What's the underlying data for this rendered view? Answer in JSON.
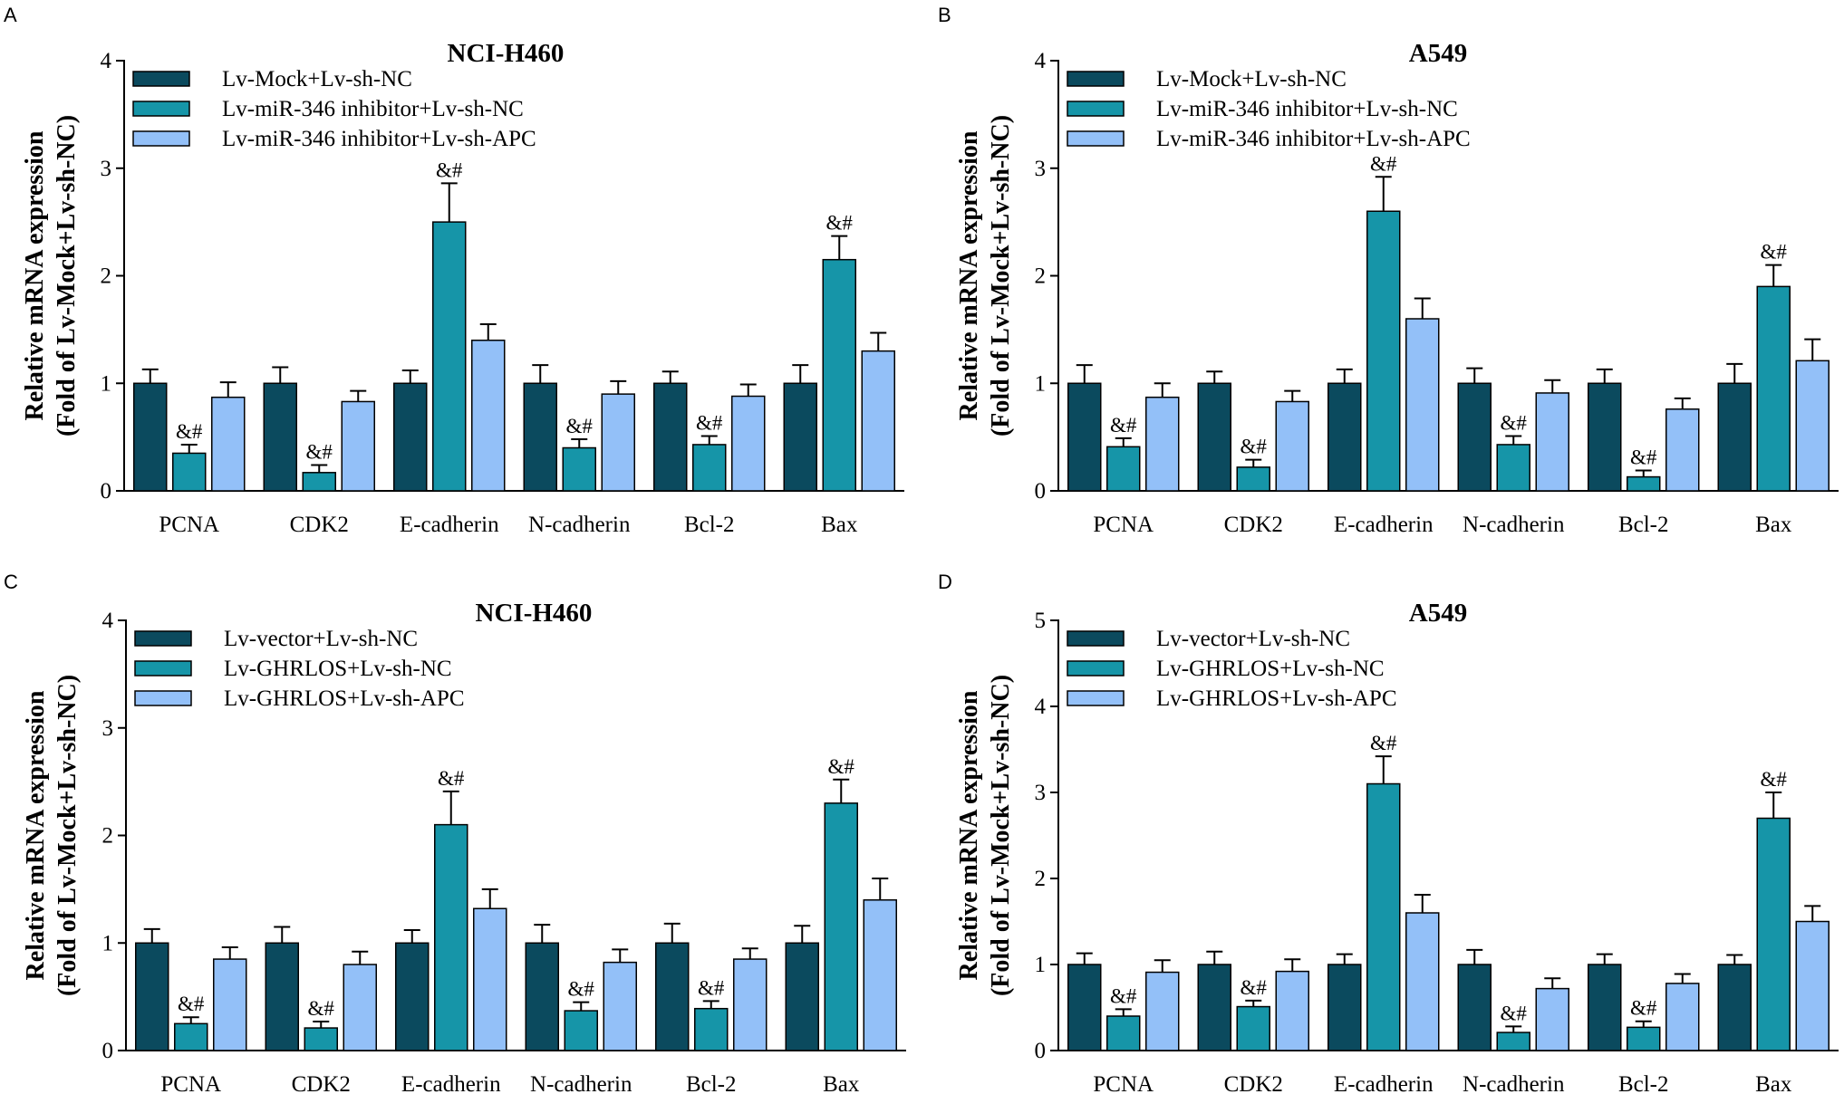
{
  "colors": {
    "series1": "#0b4a5e",
    "series2": "#1695a8",
    "series3": "#93c0f8"
  },
  "chart_data": [
    {
      "panel": "A",
      "type": "bar",
      "title": "NCI-H460",
      "ylabel_line1": "Relative mRNA expression",
      "ylabel_line2": "(Fold of Lv-Mock+Lv-sh-NC)",
      "ylim": [
        0,
        4
      ],
      "yticks": [
        "0",
        "1",
        "2",
        "3",
        "4"
      ],
      "categories": [
        "PCNA",
        "CDK2",
        "E-cadherin",
        "N-cadherin",
        "Bcl-2",
        "Bax"
      ],
      "series": [
        {
          "name": "Lv-Mock+Lv-sh-NC",
          "values": [
            1.0,
            1.0,
            1.0,
            1.0,
            1.0,
            1.0
          ],
          "errors": [
            0.13,
            0.15,
            0.12,
            0.17,
            0.11,
            0.17
          ]
        },
        {
          "name": "Lv-miR-346 inhibitor+Lv-sh-NC",
          "values": [
            0.35,
            0.17,
            2.5,
            0.4,
            0.43,
            2.15
          ],
          "errors": [
            0.08,
            0.07,
            0.36,
            0.08,
            0.08,
            0.22
          ]
        },
        {
          "name": "Lv-miR-346 inhibitor+Lv-sh-APC",
          "values": [
            0.87,
            0.83,
            1.4,
            0.9,
            0.88,
            1.3
          ],
          "errors": [
            0.14,
            0.1,
            0.15,
            0.12,
            0.11,
            0.17
          ]
        }
      ],
      "annotations": [
        {
          "text": "&#",
          "series": 1,
          "category": 0
        },
        {
          "text": "&#",
          "series": 1,
          "category": 1
        },
        {
          "text": "&#",
          "series": 1,
          "category": 2
        },
        {
          "text": "&#",
          "series": 1,
          "category": 3
        },
        {
          "text": "&#",
          "series": 1,
          "category": 4
        },
        {
          "text": "&#",
          "series": 1,
          "category": 5
        }
      ]
    },
    {
      "panel": "B",
      "type": "bar",
      "title": "A549",
      "ylabel_line1": "Relative mRNA expression",
      "ylabel_line2": "(Fold of Lv-Mock+Lv-sh-NC)",
      "ylim": [
        0,
        4
      ],
      "yticks": [
        "0",
        "1",
        "2",
        "3",
        "4"
      ],
      "categories": [
        "PCNA",
        "CDK2",
        "E-cadherin",
        "N-cadherin",
        "Bcl-2",
        "Bax"
      ],
      "series": [
        {
          "name": "Lv-Mock+Lv-sh-NC",
          "values": [
            1.0,
            1.0,
            1.0,
            1.0,
            1.0,
            1.0
          ],
          "errors": [
            0.17,
            0.11,
            0.13,
            0.14,
            0.13,
            0.18
          ]
        },
        {
          "name": "Lv-miR-346 inhibitor+Lv-sh-NC",
          "values": [
            0.41,
            0.22,
            2.6,
            0.43,
            0.13,
            1.9
          ],
          "errors": [
            0.08,
            0.07,
            0.32,
            0.08,
            0.06,
            0.2
          ]
        },
        {
          "name": "Lv-miR-346 inhibitor+Lv-sh-APC",
          "values": [
            0.87,
            0.83,
            1.6,
            0.91,
            0.76,
            1.21
          ],
          "errors": [
            0.13,
            0.1,
            0.19,
            0.12,
            0.1,
            0.2
          ]
        }
      ],
      "annotations": [
        {
          "text": "&#",
          "series": 1,
          "category": 0
        },
        {
          "text": "&#",
          "series": 1,
          "category": 1
        },
        {
          "text": "&#",
          "series": 1,
          "category": 2
        },
        {
          "text": "&#",
          "series": 1,
          "category": 3
        },
        {
          "text": "&#",
          "series": 1,
          "category": 4
        },
        {
          "text": "&#",
          "series": 1,
          "category": 5
        }
      ]
    },
    {
      "panel": "C",
      "type": "bar",
      "title": "NCI-H460",
      "ylabel_line1": "Relative mRNA expression",
      "ylabel_line2": "(Fold of Lv-Mock+Lv-sh-NC)",
      "ylim": [
        0,
        4
      ],
      "yticks": [
        "0",
        "1",
        "2",
        "3",
        "4"
      ],
      "categories": [
        "PCNA",
        "CDK2",
        "E-cadherin",
        "N-cadherin",
        "Bcl-2",
        "Bax"
      ],
      "series": [
        {
          "name": "Lv-vector+Lv-sh-NC",
          "values": [
            1.0,
            1.0,
            1.0,
            1.0,
            1.0,
            1.0
          ],
          "errors": [
            0.13,
            0.15,
            0.12,
            0.17,
            0.18,
            0.16
          ]
        },
        {
          "name": "Lv-GHRLOS+Lv-sh-NC",
          "values": [
            0.25,
            0.21,
            2.1,
            0.37,
            0.39,
            2.3
          ],
          "errors": [
            0.06,
            0.06,
            0.31,
            0.08,
            0.07,
            0.22
          ]
        },
        {
          "name": "Lv-GHRLOS+Lv-sh-APC",
          "values": [
            0.85,
            0.8,
            1.32,
            0.82,
            0.85,
            1.4
          ],
          "errors": [
            0.11,
            0.12,
            0.18,
            0.12,
            0.1,
            0.2
          ]
        }
      ],
      "annotations": [
        {
          "text": "&#",
          "series": 1,
          "category": 0
        },
        {
          "text": "&#",
          "series": 1,
          "category": 1
        },
        {
          "text": "&#",
          "series": 1,
          "category": 2
        },
        {
          "text": "&#",
          "series": 1,
          "category": 3
        },
        {
          "text": "&#",
          "series": 1,
          "category": 4
        },
        {
          "text": "&#",
          "series": 1,
          "category": 5
        }
      ]
    },
    {
      "panel": "D",
      "type": "bar",
      "title": "A549",
      "ylabel_line1": "Relative mRNA expression",
      "ylabel_line2": "(Fold of Lv-Mock+Lv-sh-NC)",
      "ylim": [
        0,
        5
      ],
      "yticks": [
        "0",
        "1",
        "2",
        "3",
        "4",
        "5"
      ],
      "categories": [
        "PCNA",
        "CDK2",
        "E-cadherin",
        "N-cadherin",
        "Bcl-2",
        "Bax"
      ],
      "series": [
        {
          "name": "Lv-vector+Lv-sh-NC",
          "values": [
            1.0,
            1.0,
            1.0,
            1.0,
            1.0,
            1.0
          ],
          "errors": [
            0.13,
            0.15,
            0.12,
            0.17,
            0.12,
            0.11
          ]
        },
        {
          "name": "Lv-GHRLOS+Lv-sh-NC",
          "values": [
            0.4,
            0.51,
            3.1,
            0.21,
            0.27,
            2.7
          ],
          "errors": [
            0.08,
            0.07,
            0.32,
            0.07,
            0.07,
            0.3
          ]
        },
        {
          "name": "Lv-GHRLOS+Lv-sh-APC",
          "values": [
            0.91,
            0.92,
            1.6,
            0.72,
            0.78,
            1.5
          ],
          "errors": [
            0.14,
            0.14,
            0.21,
            0.12,
            0.11,
            0.18
          ]
        }
      ],
      "annotations": [
        {
          "text": "&#",
          "series": 1,
          "category": 0
        },
        {
          "text": "&#",
          "series": 1,
          "category": 1
        },
        {
          "text": "&#",
          "series": 1,
          "category": 2
        },
        {
          "text": "&#",
          "series": 1,
          "category": 3
        },
        {
          "text": "&#",
          "series": 1,
          "category": 4
        },
        {
          "text": "&#",
          "series": 1,
          "category": 5
        }
      ]
    }
  ]
}
